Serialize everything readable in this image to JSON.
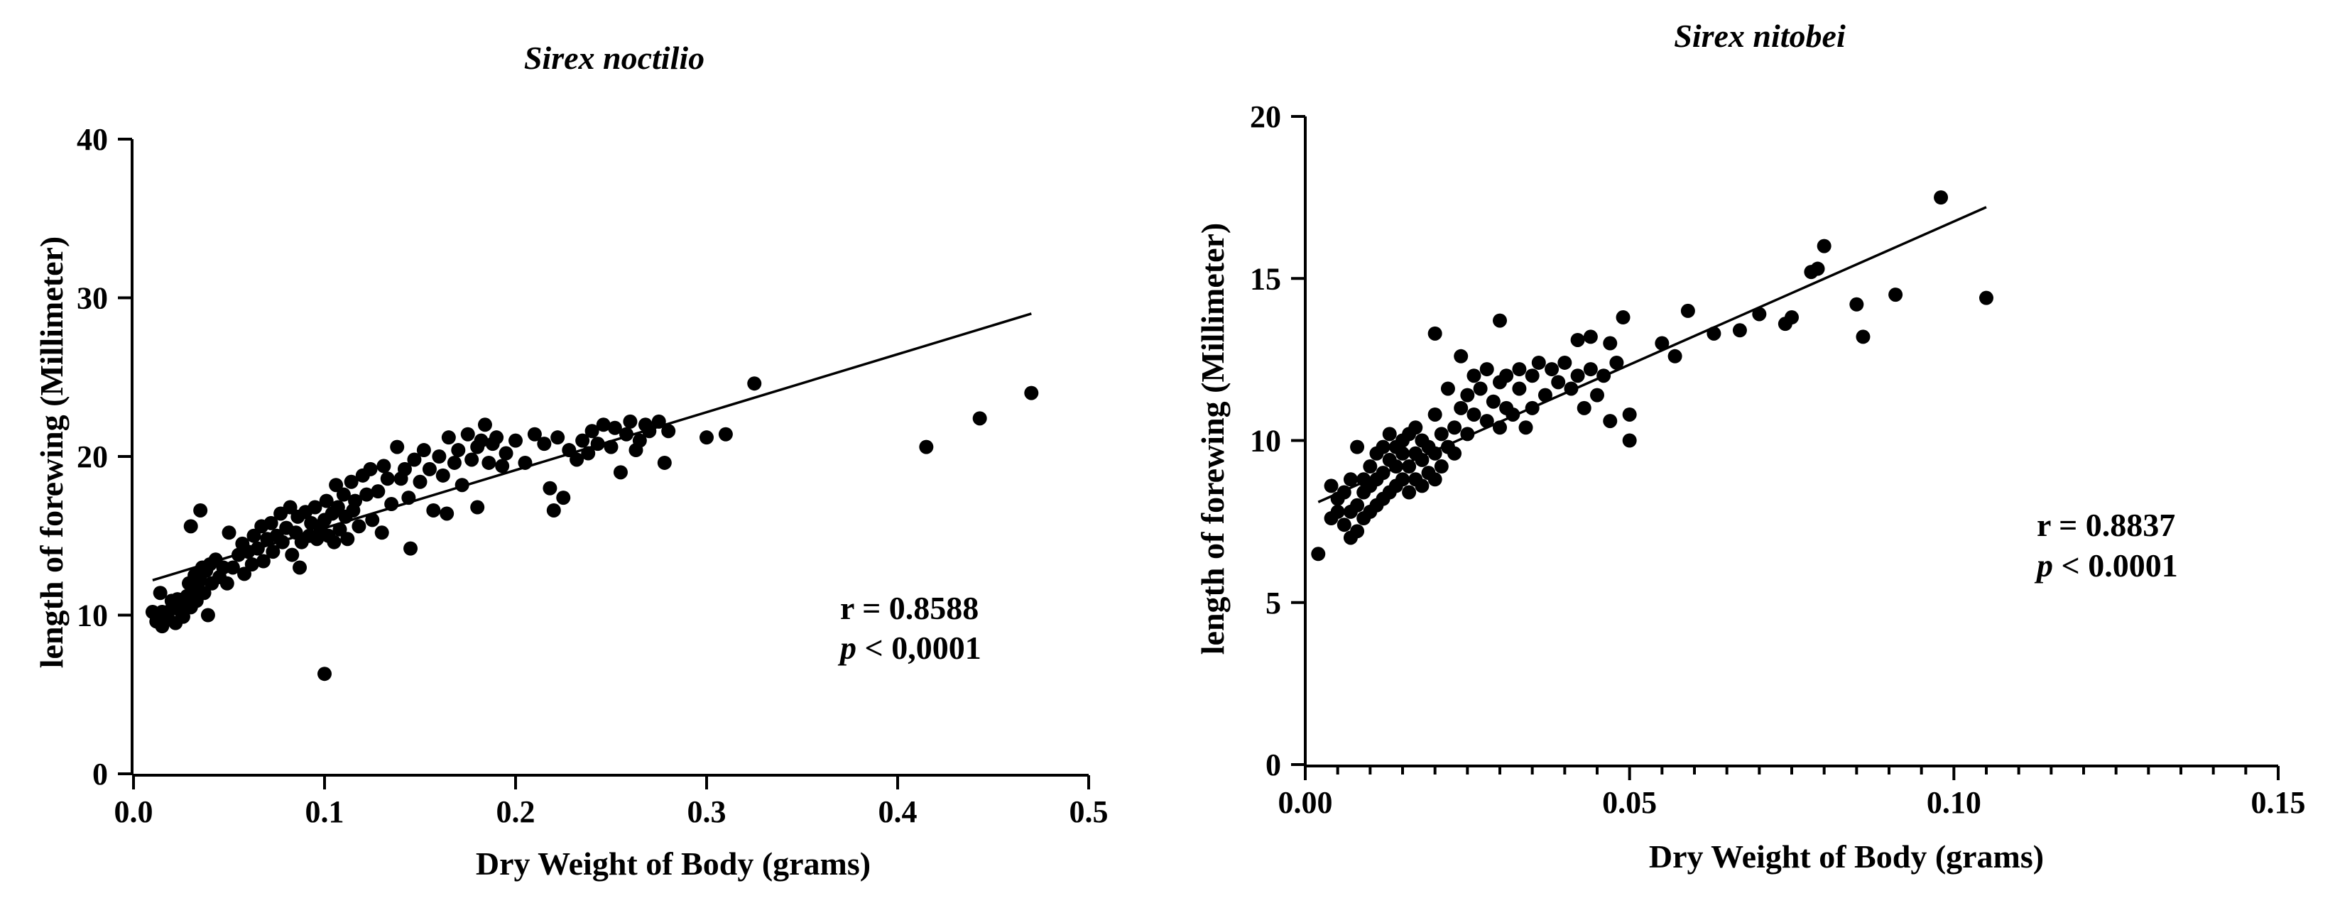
{
  "chart_data": [
    {
      "type": "scatter",
      "title": "Sirex noctilio",
      "xlabel": "Dry Weight of Body (grams)",
      "ylabel": "length of forewing (Millimeter)",
      "xlim": [
        0.0,
        0.5
      ],
      "ylim": [
        0,
        40
      ],
      "x_ticks": [
        0.0,
        0.1,
        0.2,
        0.3,
        0.4,
        0.5
      ],
      "x_tick_labels": [
        "0.0",
        "0.1",
        "0.2",
        "0.3",
        "0.4",
        "0.5"
      ],
      "y_ticks": [
        0,
        10,
        20,
        30,
        40
      ],
      "y_tick_labels": [
        "0",
        "10",
        "20",
        "30",
        "40"
      ],
      "fit_line": {
        "x": [
          0.01,
          0.47
        ],
        "y": [
          12.2,
          29.0
        ]
      },
      "stat_r": "r = 0.8588",
      "stat_p_symbol": "p",
      "stat_p_rest": " < 0,0001",
      "points": [
        [
          0.01,
          10.2
        ],
        [
          0.012,
          9.6
        ],
        [
          0.014,
          11.4
        ],
        [
          0.015,
          9.3
        ],
        [
          0.017,
          10.0
        ],
        [
          0.018,
          9.8
        ],
        [
          0.02,
          10.4
        ],
        [
          0.022,
          9.5
        ],
        [
          0.023,
          11.0
        ],
        [
          0.025,
          10.2
        ],
        [
          0.026,
          9.9
        ],
        [
          0.027,
          10.8
        ],
        [
          0.028,
          11.2
        ],
        [
          0.029,
          12.0
        ],
        [
          0.03,
          10.5
        ],
        [
          0.031,
          11.8
        ],
        [
          0.032,
          12.5
        ],
        [
          0.033,
          10.9
        ],
        [
          0.034,
          11.5
        ],
        [
          0.035,
          12.2
        ],
        [
          0.036,
          13.0
        ],
        [
          0.037,
          11.4
        ],
        [
          0.038,
          12.8
        ],
        [
          0.039,
          10.0
        ],
        [
          0.04,
          13.2
        ],
        [
          0.041,
          12.0
        ],
        [
          0.043,
          13.5
        ],
        [
          0.045,
          12.4
        ],
        [
          0.047,
          13.0
        ],
        [
          0.049,
          12.0
        ],
        [
          0.03,
          15.6
        ],
        [
          0.035,
          16.6
        ],
        [
          0.05,
          15.2
        ],
        [
          0.052,
          13.0
        ],
        [
          0.055,
          13.8
        ],
        [
          0.057,
          14.5
        ],
        [
          0.058,
          12.6
        ],
        [
          0.06,
          14.0
        ],
        [
          0.062,
          13.2
        ],
        [
          0.063,
          15.0
        ],
        [
          0.065,
          14.2
        ],
        [
          0.067,
          15.6
        ],
        [
          0.068,
          13.4
        ],
        [
          0.07,
          14.8
        ],
        [
          0.072,
          15.8
        ],
        [
          0.073,
          14.0
        ],
        [
          0.075,
          15.0
        ],
        [
          0.077,
          16.4
        ],
        [
          0.078,
          14.6
        ],
        [
          0.08,
          15.5
        ],
        [
          0.082,
          16.8
        ],
        [
          0.083,
          13.8
        ],
        [
          0.085,
          15.2
        ],
        [
          0.086,
          16.2
        ],
        [
          0.087,
          13.0
        ],
        [
          0.088,
          14.6
        ],
        [
          0.09,
          16.5
        ],
        [
          0.092,
          15.0
        ],
        [
          0.093,
          15.8
        ],
        [
          0.095,
          16.8
        ],
        [
          0.096,
          14.8
        ],
        [
          0.098,
          15.4
        ],
        [
          0.1,
          16.0
        ],
        [
          0.101,
          17.2
        ],
        [
          0.102,
          15.0
        ],
        [
          0.104,
          16.4
        ],
        [
          0.105,
          14.6
        ],
        [
          0.106,
          18.2
        ],
        [
          0.107,
          16.8
        ],
        [
          0.108,
          15.4
        ],
        [
          0.11,
          17.6
        ],
        [
          0.111,
          16.2
        ],
        [
          0.112,
          14.8
        ],
        [
          0.114,
          18.4
        ],
        [
          0.115,
          16.6
        ],
        [
          0.116,
          17.2
        ],
        [
          0.118,
          15.6
        ],
        [
          0.12,
          18.8
        ],
        [
          0.122,
          17.6
        ],
        [
          0.124,
          19.2
        ],
        [
          0.125,
          16.0
        ],
        [
          0.128,
          17.8
        ],
        [
          0.13,
          15.2
        ],
        [
          0.131,
          19.4
        ],
        [
          0.133,
          18.6
        ],
        [
          0.135,
          17.0
        ],
        [
          0.138,
          20.6
        ],
        [
          0.14,
          18.6
        ],
        [
          0.142,
          19.2
        ],
        [
          0.144,
          17.4
        ],
        [
          0.145,
          14.2
        ],
        [
          0.147,
          19.8
        ],
        [
          0.15,
          18.4
        ],
        [
          0.152,
          20.4
        ],
        [
          0.155,
          19.2
        ],
        [
          0.157,
          16.6
        ],
        [
          0.16,
          20.0
        ],
        [
          0.162,
          18.8
        ],
        [
          0.164,
          16.4
        ],
        [
          0.165,
          21.2
        ],
        [
          0.168,
          19.6
        ],
        [
          0.17,
          20.4
        ],
        [
          0.172,
          18.2
        ],
        [
          0.175,
          21.4
        ],
        [
          0.177,
          19.8
        ],
        [
          0.18,
          16.8
        ],
        [
          0.18,
          20.6
        ],
        [
          0.182,
          21.0
        ],
        [
          0.184,
          22.0
        ],
        [
          0.186,
          19.6
        ],
        [
          0.188,
          20.8
        ],
        [
          0.19,
          21.2
        ],
        [
          0.193,
          19.4
        ],
        [
          0.195,
          20.2
        ],
        [
          0.2,
          21.0
        ],
        [
          0.205,
          19.6
        ],
        [
          0.21,
          21.4
        ],
        [
          0.215,
          20.8
        ],
        [
          0.218,
          18.0
        ],
        [
          0.22,
          16.6
        ],
        [
          0.222,
          21.2
        ],
        [
          0.225,
          17.4
        ],
        [
          0.228,
          20.4
        ],
        [
          0.232,
          19.8
        ],
        [
          0.235,
          21.0
        ],
        [
          0.238,
          20.2
        ],
        [
          0.24,
          21.6
        ],
        [
          0.243,
          20.8
        ],
        [
          0.246,
          22.0
        ],
        [
          0.25,
          20.6
        ],
        [
          0.252,
          21.8
        ],
        [
          0.255,
          19.0
        ],
        [
          0.258,
          21.4
        ],
        [
          0.26,
          22.2
        ],
        [
          0.263,
          20.4
        ],
        [
          0.265,
          21.0
        ],
        [
          0.268,
          22.0
        ],
        [
          0.27,
          21.6
        ],
        [
          0.275,
          22.2
        ],
        [
          0.278,
          19.6
        ],
        [
          0.28,
          21.6
        ],
        [
          0.3,
          21.2
        ],
        [
          0.31,
          21.4
        ],
        [
          0.325,
          24.6
        ],
        [
          0.1,
          6.3
        ],
        [
          0.415,
          20.6
        ],
        [
          0.443,
          22.4
        ],
        [
          0.47,
          24.0
        ],
        [
          0.02,
          10.9
        ],
        [
          0.015,
          10.2
        ]
      ]
    },
    {
      "type": "scatter",
      "title": "Sirex nitobei",
      "xlabel": "Dry Weight of Body (grams)",
      "ylabel": "length of forewing (Millimeter)",
      "xlim": [
        0.0,
        0.15
      ],
      "ylim": [
        0,
        20
      ],
      "x_ticks": [
        0.0,
        0.05,
        0.1,
        0.15
      ],
      "x_tick_labels": [
        "0.00",
        "0.05",
        "0.10",
        "0.15"
      ],
      "x_minor_ticks": [
        0.005,
        0.01,
        0.015,
        0.02,
        0.025,
        0.03,
        0.035,
        0.04,
        0.045,
        0.055,
        0.06,
        0.065,
        0.07,
        0.075,
        0.08,
        0.085,
        0.09,
        0.095,
        0.105,
        0.11,
        0.115,
        0.12,
        0.125,
        0.13,
        0.135,
        0.14,
        0.145
      ],
      "y_ticks": [
        0,
        5,
        10,
        15,
        20
      ],
      "y_tick_labels": [
        "0",
        "5",
        "10",
        "15",
        "20"
      ],
      "fit_line": {
        "x": [
          0.002,
          0.105
        ],
        "y": [
          8.1,
          17.2
        ]
      },
      "stat_r": "r = 0.8837",
      "stat_p_symbol": "p",
      "stat_p_rest": " < 0.0001",
      "points": [
        [
          0.002,
          6.5
        ],
        [
          0.004,
          7.6
        ],
        [
          0.004,
          8.6
        ],
        [
          0.005,
          7.8
        ],
        [
          0.005,
          8.2
        ],
        [
          0.006,
          7.4
        ],
        [
          0.006,
          8.4
        ],
        [
          0.007,
          7.0
        ],
        [
          0.007,
          7.8
        ],
        [
          0.007,
          8.8
        ],
        [
          0.008,
          7.2
        ],
        [
          0.008,
          8.0
        ],
        [
          0.008,
          9.8
        ],
        [
          0.009,
          7.6
        ],
        [
          0.009,
          8.4
        ],
        [
          0.009,
          8.8
        ],
        [
          0.01,
          7.8
        ],
        [
          0.01,
          8.6
        ],
        [
          0.01,
          9.2
        ],
        [
          0.011,
          8.0
        ],
        [
          0.011,
          8.8
        ],
        [
          0.011,
          9.6
        ],
        [
          0.012,
          8.2
        ],
        [
          0.012,
          9.0
        ],
        [
          0.012,
          9.8
        ],
        [
          0.013,
          8.4
        ],
        [
          0.013,
          9.4
        ],
        [
          0.013,
          10.2
        ],
        [
          0.014,
          8.6
        ],
        [
          0.014,
          9.2
        ],
        [
          0.014,
          9.8
        ],
        [
          0.015,
          8.8
        ],
        [
          0.015,
          9.6
        ],
        [
          0.015,
          10.0
        ],
        [
          0.016,
          8.4
        ],
        [
          0.016,
          9.2
        ],
        [
          0.016,
          10.2
        ],
        [
          0.017,
          8.8
        ],
        [
          0.017,
          9.6
        ],
        [
          0.017,
          10.4
        ],
        [
          0.018,
          8.6
        ],
        [
          0.018,
          9.4
        ],
        [
          0.018,
          10.0
        ],
        [
          0.019,
          9.0
        ],
        [
          0.019,
          9.8
        ],
        [
          0.02,
          8.8
        ],
        [
          0.02,
          9.6
        ],
        [
          0.02,
          10.8
        ],
        [
          0.02,
          13.3
        ],
        [
          0.021,
          9.2
        ],
        [
          0.021,
          10.2
        ],
        [
          0.022,
          9.8
        ],
        [
          0.022,
          11.6
        ],
        [
          0.023,
          10.4
        ],
        [
          0.023,
          9.6
        ],
        [
          0.024,
          11.0
        ],
        [
          0.024,
          12.6
        ],
        [
          0.025,
          10.2
        ],
        [
          0.025,
          11.4
        ],
        [
          0.026,
          12.0
        ],
        [
          0.026,
          10.8
        ],
        [
          0.027,
          11.6
        ],
        [
          0.028,
          10.6
        ],
        [
          0.028,
          12.2
        ],
        [
          0.029,
          11.2
        ],
        [
          0.03,
          10.4
        ],
        [
          0.03,
          11.8
        ],
        [
          0.03,
          13.7
        ],
        [
          0.031,
          11.0
        ],
        [
          0.031,
          12.0
        ],
        [
          0.032,
          10.8
        ],
        [
          0.033,
          11.6
        ],
        [
          0.033,
          12.2
        ],
        [
          0.034,
          10.4
        ],
        [
          0.035,
          11.0
        ],
        [
          0.035,
          12.0
        ],
        [
          0.036,
          12.4
        ],
        [
          0.037,
          11.4
        ],
        [
          0.038,
          12.2
        ],
        [
          0.039,
          11.8
        ],
        [
          0.04,
          12.4
        ],
        [
          0.041,
          11.6
        ],
        [
          0.042,
          12.0
        ],
        [
          0.042,
          13.1
        ],
        [
          0.043,
          11.0
        ],
        [
          0.044,
          12.2
        ],
        [
          0.044,
          13.2
        ],
        [
          0.045,
          11.4
        ],
        [
          0.046,
          12.0
        ],
        [
          0.047,
          10.6
        ],
        [
          0.047,
          13.0
        ],
        [
          0.048,
          12.4
        ],
        [
          0.049,
          13.8
        ],
        [
          0.05,
          10.0
        ],
        [
          0.05,
          10.8
        ],
        [
          0.055,
          13.0
        ],
        [
          0.057,
          12.6
        ],
        [
          0.059,
          14.0
        ],
        [
          0.063,
          13.3
        ],
        [
          0.067,
          13.4
        ],
        [
          0.07,
          13.9
        ],
        [
          0.074,
          13.6
        ],
        [
          0.075,
          13.8
        ],
        [
          0.078,
          15.2
        ],
        [
          0.079,
          15.3
        ],
        [
          0.08,
          16.0
        ],
        [
          0.085,
          14.2
        ],
        [
          0.086,
          13.2
        ],
        [
          0.091,
          14.5
        ],
        [
          0.098,
          17.5
        ],
        [
          0.105,
          14.4
        ]
      ]
    }
  ]
}
